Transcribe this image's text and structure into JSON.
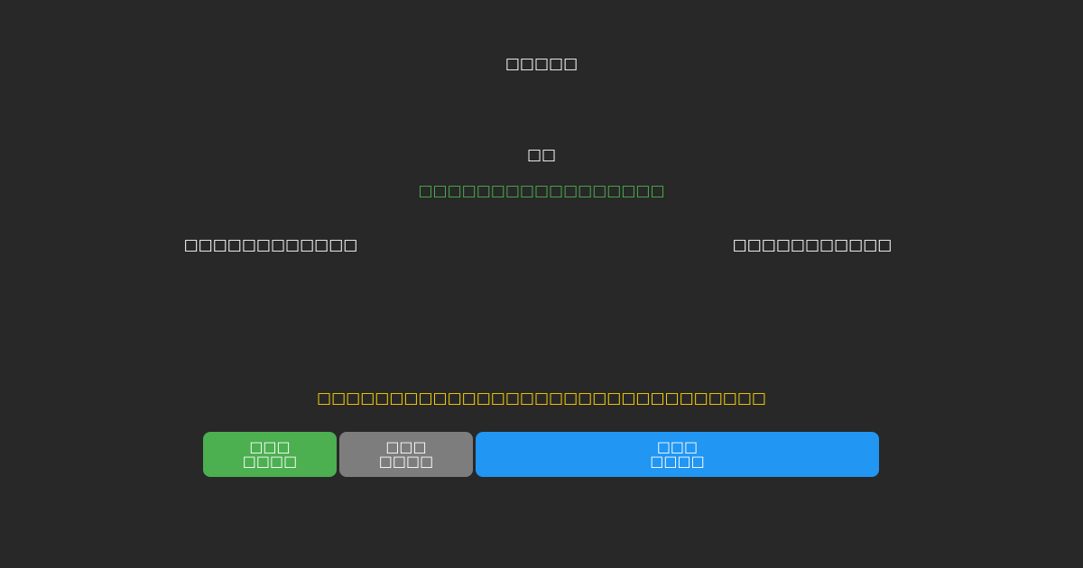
{
  "colors": {
    "background": "#282828",
    "text": "#ffffff",
    "green_text": "#4caf50",
    "yellow_text": "#ffd400",
    "button_green": "#4caf50",
    "button_gray": "#7d7d7d",
    "button_blue": "#2196f3"
  },
  "header": {
    "title": "□□□□□"
  },
  "body": {
    "center_message": "□□",
    "green_message": "□□□□□□□□□□□□□□□□□",
    "left_label": "□□□□□□□□□□□□",
    "right_label": "□□□□□□□□□□□",
    "warning_message": "□□□□□□□□□□□□□□□□□□□□□□□□□□□□□□□"
  },
  "buttons": {
    "green": {
      "line1": "□□□",
      "line2": "□□□□",
      "color": "#4caf50"
    },
    "gray": {
      "line1": "□□□",
      "line2": "□□□□",
      "color": "#7d7d7d"
    },
    "blue": {
      "line1": "□□□",
      "line2": "□□□□",
      "color": "#2196f3"
    }
  }
}
